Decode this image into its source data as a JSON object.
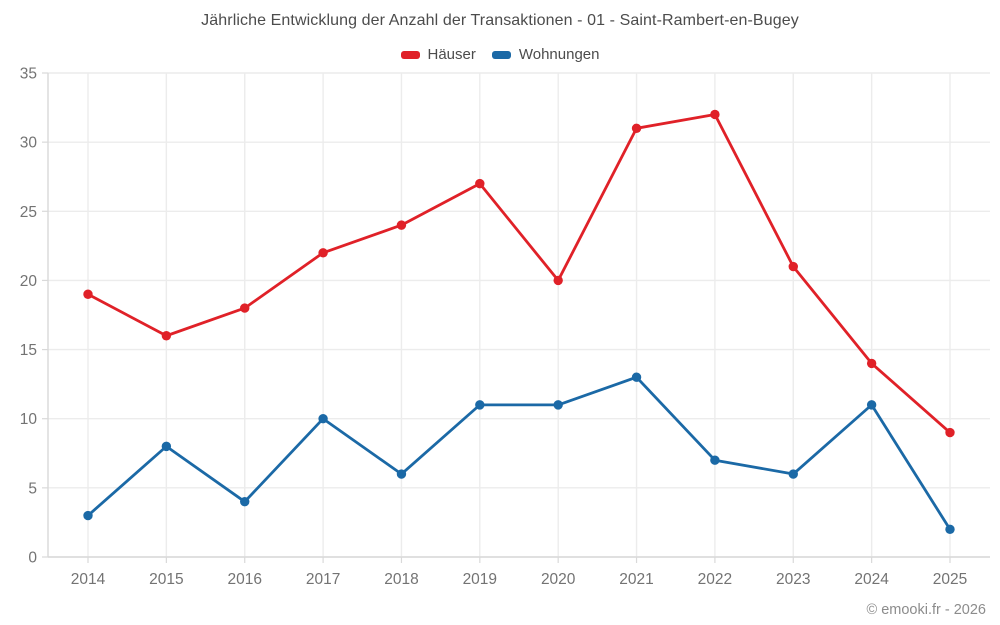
{
  "page": {
    "footer": "© emooki.fr - 2026",
    "background": "#ffffff"
  },
  "chart_data": {
    "type": "line",
    "title": "Jährliche Entwicklung der Anzahl der Transaktionen - 01 - Saint-Rambert-en-Bugey",
    "categories": [
      "2014",
      "2015",
      "2016",
      "2017",
      "2018",
      "2019",
      "2020",
      "2021",
      "2022",
      "2023",
      "2024",
      "2025"
    ],
    "series": [
      {
        "name": "Häuser",
        "color": "#e02128",
        "values": [
          19,
          16,
          18,
          22,
          24,
          27,
          20,
          31,
          32,
          21,
          14,
          9
        ]
      },
      {
        "name": "Wohnungen",
        "color": "#1b69a6",
        "values": [
          3,
          8,
          4,
          10,
          6,
          11,
          11,
          13,
          7,
          6,
          11,
          2
        ]
      }
    ],
    "xlabel": "",
    "ylabel": "",
    "ylim": [
      0,
      35
    ],
    "ytick_step": 5,
    "grid": true,
    "legend_position": "top",
    "marker": "circle",
    "colors": {
      "grid": "#ececec",
      "axis": "#d9d9d9",
      "tick_labels": "#737373",
      "title_text": "#4c4c4c",
      "footer_text": "#8c8c8c"
    }
  }
}
